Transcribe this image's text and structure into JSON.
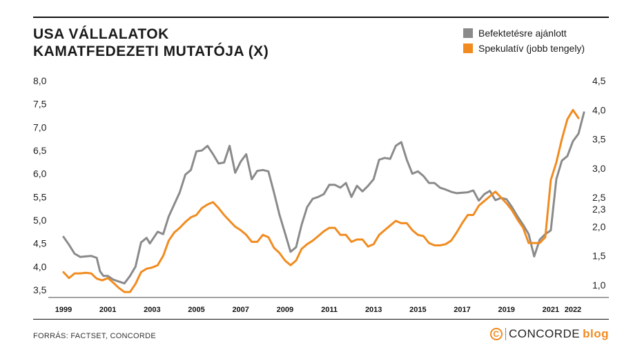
{
  "title_line1": "USA VÁLLALATOK",
  "title_line2": "KAMATFEDEZETI MUTATÓJA (X)",
  "legend": [
    {
      "label": "Befektetésre ajánlott",
      "color": "#8a8a8a"
    },
    {
      "label": "Spekulatív (jobb tengely)",
      "color": "#f18b1f"
    }
  ],
  "source": "FORRÁS: FACTSET, CONCORDE",
  "brand": {
    "mark": "C",
    "name": "CONCORDE",
    "suffix": "blog"
  },
  "chart_data": {
    "type": "line",
    "x_tick_labels": [
      "1999",
      "2001",
      "2003",
      "2005",
      "2007",
      "2009",
      "2011",
      "2013",
      "2015",
      "2017",
      "2019",
      "2021",
      "2022"
    ],
    "x_tick_years": [
      1999,
      2001,
      2003,
      2005,
      2007,
      2009,
      2011,
      2013,
      2015,
      2017,
      2019,
      2021,
      2022
    ],
    "x_range": [
      1998.5,
      2023.0
    ],
    "y_left": {
      "ticks": [
        "3,5",
        "4,0",
        "4,5",
        "5,0",
        "5,5",
        "6,0",
        "6,5",
        "7,0",
        "7,5",
        "8,0"
      ],
      "range": [
        3.5,
        8.0
      ]
    },
    "y_right": {
      "ticks": [
        "1,0",
        "1,5",
        "2,0",
        "2,3",
        "2,5",
        "3,0",
        "3,5",
        "4,0",
        "4,5"
      ],
      "tick_values": [
        1.0,
        1.5,
        2.0,
        2.3,
        2.5,
        3.0,
        3.5,
        4.0,
        4.5
      ],
      "range": [
        0.9,
        4.5
      ]
    },
    "series": [
      {
        "name": "Befektetésre ajánlott",
        "axis": "left",
        "color": "#8a8a8a",
        "points": [
          [
            1999.0,
            4.64
          ],
          [
            1999.25,
            4.47
          ],
          [
            1999.5,
            4.28
          ],
          [
            1999.75,
            4.21
          ],
          [
            2000.0,
            4.22
          ],
          [
            2000.25,
            4.23
          ],
          [
            2000.5,
            4.19
          ],
          [
            2000.65,
            3.9
          ],
          [
            2000.8,
            3.8
          ],
          [
            2001.0,
            3.8
          ],
          [
            2001.25,
            3.72
          ],
          [
            2001.5,
            3.68
          ],
          [
            2001.75,
            3.64
          ],
          [
            2002.0,
            3.8
          ],
          [
            2002.25,
            4.0
          ],
          [
            2002.5,
            4.52
          ],
          [
            2002.75,
            4.62
          ],
          [
            2002.9,
            4.5
          ],
          [
            2003.25,
            4.75
          ],
          [
            2003.5,
            4.7
          ],
          [
            2003.75,
            5.08
          ],
          [
            2004.0,
            5.34
          ],
          [
            2004.25,
            5.6
          ],
          [
            2004.5,
            5.98
          ],
          [
            2004.75,
            6.08
          ],
          [
            2005.0,
            6.48
          ],
          [
            2005.25,
            6.5
          ],
          [
            2005.5,
            6.6
          ],
          [
            2005.75,
            6.42
          ],
          [
            2006.0,
            6.22
          ],
          [
            2006.25,
            6.24
          ],
          [
            2006.5,
            6.6
          ],
          [
            2006.75,
            6.02
          ],
          [
            2007.0,
            6.26
          ],
          [
            2007.25,
            6.42
          ],
          [
            2007.5,
            5.88
          ],
          [
            2007.75,
            6.06
          ],
          [
            2008.0,
            6.08
          ],
          [
            2008.25,
            6.05
          ],
          [
            2008.5,
            5.6
          ],
          [
            2008.75,
            5.12
          ],
          [
            2009.0,
            4.72
          ],
          [
            2009.25,
            4.32
          ],
          [
            2009.5,
            4.42
          ],
          [
            2009.75,
            4.9
          ],
          [
            2010.0,
            5.28
          ],
          [
            2010.25,
            5.46
          ],
          [
            2010.5,
            5.5
          ],
          [
            2010.75,
            5.56
          ],
          [
            2011.0,
            5.76
          ],
          [
            2011.25,
            5.76
          ],
          [
            2011.5,
            5.7
          ],
          [
            2011.75,
            5.8
          ],
          [
            2012.0,
            5.5
          ],
          [
            2012.25,
            5.74
          ],
          [
            2012.5,
            5.62
          ],
          [
            2012.75,
            5.74
          ],
          [
            2013.0,
            5.88
          ],
          [
            2013.25,
            6.3
          ],
          [
            2013.5,
            6.34
          ],
          [
            2013.75,
            6.32
          ],
          [
            2014.0,
            6.6
          ],
          [
            2014.25,
            6.68
          ],
          [
            2014.5,
            6.3
          ],
          [
            2014.75,
            6.0
          ],
          [
            2015.0,
            6.05
          ],
          [
            2015.25,
            5.95
          ],
          [
            2015.5,
            5.8
          ],
          [
            2015.75,
            5.8
          ],
          [
            2016.0,
            5.7
          ],
          [
            2016.25,
            5.66
          ],
          [
            2016.5,
            5.61
          ],
          [
            2016.75,
            5.58
          ],
          [
            2017.0,
            5.59
          ],
          [
            2017.25,
            5.6
          ],
          [
            2017.5,
            5.64
          ],
          [
            2017.75,
            5.42
          ],
          [
            2018.0,
            5.56
          ],
          [
            2018.25,
            5.63
          ],
          [
            2018.5,
            5.43
          ],
          [
            2018.75,
            5.48
          ],
          [
            2019.0,
            5.45
          ],
          [
            2019.25,
            5.28
          ],
          [
            2019.5,
            5.08
          ],
          [
            2019.75,
            4.9
          ],
          [
            2020.0,
            4.7
          ],
          [
            2020.25,
            4.22
          ],
          [
            2020.5,
            4.58
          ],
          [
            2020.75,
            4.7
          ],
          [
            2021.0,
            4.78
          ],
          [
            2021.25,
            5.88
          ],
          [
            2021.5,
            6.28
          ],
          [
            2021.75,
            6.38
          ],
          [
            2022.0,
            6.7
          ],
          [
            2022.25,
            6.86
          ],
          [
            2022.5,
            7.32
          ]
        ]
      },
      {
        "name": "Spekulatív (jobb tengely)",
        "axis": "right",
        "color": "#f18b1f",
        "points": [
          [
            1999.0,
            1.22
          ],
          [
            1999.25,
            1.12
          ],
          [
            1999.5,
            1.2
          ],
          [
            1999.75,
            1.2
          ],
          [
            2000.0,
            1.21
          ],
          [
            2000.25,
            1.2
          ],
          [
            2000.5,
            1.11
          ],
          [
            2000.75,
            1.08
          ],
          [
            2001.0,
            1.12
          ],
          [
            2001.25,
            1.04
          ],
          [
            2001.5,
            0.95
          ],
          [
            2001.75,
            0.88
          ],
          [
            2002.0,
            0.88
          ],
          [
            2002.25,
            1.02
          ],
          [
            2002.5,
            1.22
          ],
          [
            2002.75,
            1.28
          ],
          [
            2003.0,
            1.3
          ],
          [
            2003.25,
            1.34
          ],
          [
            2003.5,
            1.5
          ],
          [
            2003.75,
            1.76
          ],
          [
            2004.0,
            1.9
          ],
          [
            2004.25,
            1.98
          ],
          [
            2004.5,
            2.08
          ],
          [
            2004.75,
            2.16
          ],
          [
            2005.0,
            2.2
          ],
          [
            2005.25,
            2.32
          ],
          [
            2005.5,
            2.38
          ],
          [
            2005.75,
            2.42
          ],
          [
            2006.0,
            2.32
          ],
          [
            2006.25,
            2.2
          ],
          [
            2006.5,
            2.1
          ],
          [
            2006.75,
            2.0
          ],
          [
            2007.0,
            1.94
          ],
          [
            2007.25,
            1.86
          ],
          [
            2007.5,
            1.74
          ],
          [
            2007.75,
            1.74
          ],
          [
            2008.0,
            1.86
          ],
          [
            2008.25,
            1.82
          ],
          [
            2008.5,
            1.64
          ],
          [
            2008.75,
            1.55
          ],
          [
            2009.0,
            1.42
          ],
          [
            2009.25,
            1.34
          ],
          [
            2009.5,
            1.42
          ],
          [
            2009.75,
            1.62
          ],
          [
            2010.0,
            1.7
          ],
          [
            2010.25,
            1.76
          ],
          [
            2010.5,
            1.84
          ],
          [
            2010.75,
            1.92
          ],
          [
            2011.0,
            1.98
          ],
          [
            2011.25,
            1.98
          ],
          [
            2011.5,
            1.86
          ],
          [
            2011.75,
            1.86
          ],
          [
            2012.0,
            1.74
          ],
          [
            2012.25,
            1.78
          ],
          [
            2012.5,
            1.78
          ],
          [
            2012.75,
            1.66
          ],
          [
            2013.0,
            1.7
          ],
          [
            2013.25,
            1.86
          ],
          [
            2013.5,
            1.94
          ],
          [
            2013.75,
            2.02
          ],
          [
            2014.0,
            2.1
          ],
          [
            2014.25,
            2.06
          ],
          [
            2014.5,
            2.06
          ],
          [
            2014.75,
            1.94
          ],
          [
            2015.0,
            1.86
          ],
          [
            2015.25,
            1.84
          ],
          [
            2015.5,
            1.72
          ],
          [
            2015.75,
            1.68
          ],
          [
            2016.0,
            1.68
          ],
          [
            2016.25,
            1.7
          ],
          [
            2016.5,
            1.76
          ],
          [
            2016.75,
            1.9
          ],
          [
            2017.0,
            2.06
          ],
          [
            2017.25,
            2.2
          ],
          [
            2017.5,
            2.2
          ],
          [
            2017.75,
            2.36
          ],
          [
            2018.0,
            2.44
          ],
          [
            2018.25,
            2.52
          ],
          [
            2018.5,
            2.6
          ],
          [
            2018.75,
            2.5
          ],
          [
            2019.0,
            2.4
          ],
          [
            2019.25,
            2.28
          ],
          [
            2019.5,
            2.12
          ],
          [
            2019.75,
            1.98
          ],
          [
            2020.0,
            1.72
          ],
          [
            2020.25,
            1.72
          ],
          [
            2020.5,
            1.72
          ],
          [
            2020.75,
            1.82
          ],
          [
            2021.0,
            2.8
          ],
          [
            2021.25,
            3.1
          ],
          [
            2021.5,
            3.5
          ],
          [
            2021.75,
            3.84
          ],
          [
            2022.0,
            4.0
          ],
          [
            2022.25,
            3.86
          ]
        ]
      }
    ]
  }
}
